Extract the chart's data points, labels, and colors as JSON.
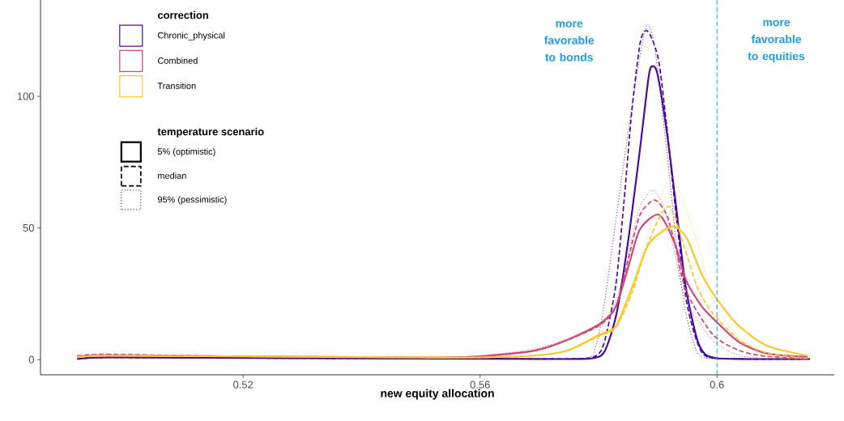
{
  "chart_data": {
    "type": "line",
    "xlabel": "new equity allocation",
    "legend_title": "correction",
    "legend": "top left",
    "xlim": [
      0.4858,
      0.6198
    ],
    "ylim": [
      -5.8,
      136.6
    ],
    "xticks": [
      0.52,
      0.56,
      0.6
    ],
    "yticks": [
      0,
      50,
      100
    ],
    "ref_lines": [
      {
        "axis": "x",
        "value": 0.6,
        "color": "#1f9be8",
        "line_style": "dashed"
      }
    ],
    "annotations": [
      "more favorable to bonds",
      "more favorable to equities",
      "temperature scenario",
      "5% (optimistic)",
      "median",
      "95% (pessimistic)"
    ],
    "series": [
      {
        "name": "Chronic_physical",
        "color": "#4a0c9f",
        "line_style": "solid",
        "x": [
          0.492,
          0.497,
          0.52,
          0.56,
          0.575,
          0.579,
          0.581,
          0.583,
          0.585,
          0.587,
          0.5885,
          0.5892,
          0.59,
          0.5915,
          0.593,
          0.5947,
          0.5966,
          0.598,
          0.6,
          0.605,
          0.6157
        ],
        "values": [
          0.2,
          0.8,
          0.6,
          0.3,
          0.2,
          0.5,
          3,
          17,
          45,
          80,
          108,
          111.5,
          108,
          87,
          60,
          28,
          8,
          2,
          0.5,
          0.2,
          0.2
        ]
      },
      {
        "color": "#4a0c9f",
        "line_style": "dashed",
        "x": [
          0.492,
          0.497,
          0.52,
          0.56,
          0.575,
          0.5792,
          0.5809,
          0.5829,
          0.5843,
          0.5856,
          0.587,
          0.588,
          0.589,
          0.5902,
          0.5915,
          0.5929,
          0.5948,
          0.5966,
          0.5984,
          0.605,
          0.6157
        ],
        "values": [
          0.2,
          0.8,
          0.6,
          0.3,
          0.3,
          1,
          6,
          28,
          60,
          94,
          120,
          125,
          122,
          113,
          89,
          59,
          23,
          7,
          1,
          0.2,
          0.2
        ]
      },
      {
        "color": "#4a0c9f",
        "line_style": "dotted",
        "x": [
          0.492,
          0.497,
          0.52,
          0.56,
          0.5774,
          0.5795,
          0.5811,
          0.5839,
          0.5866,
          0.5881,
          0.5892,
          0.5902,
          0.5921,
          0.5934,
          0.5948,
          0.5966,
          0.5984,
          0.605,
          0.6157
        ],
        "values": [
          0.2,
          0.8,
          0.6,
          0.3,
          0.5,
          5,
          23,
          69,
          110,
          127,
          122,
          106,
          67,
          38,
          17,
          3,
          0.5,
          0.2,
          0.2
        ]
      },
      {
        "name": "Combined",
        "color": "#cc4778",
        "line_style": "solid",
        "x": [
          0.492,
          0.497,
          0.52,
          0.55,
          0.56,
          0.5692,
          0.5747,
          0.5802,
          0.5829,
          0.585,
          0.587,
          0.5902,
          0.5929,
          0.5948,
          0.5975,
          0.6003,
          0.6038,
          0.6085,
          0.6153
        ],
        "values": [
          1,
          1.5,
          1.2,
          0.8,
          1.2,
          3.4,
          7.4,
          13.5,
          20,
          35,
          49.5,
          55,
          44,
          30,
          20,
          13.5,
          6.5,
          2.3,
          1
        ]
      },
      {
        "color": "#cc4778",
        "line_style": "dashed",
        "x": [
          0.492,
          0.497,
          0.52,
          0.55,
          0.56,
          0.5692,
          0.5747,
          0.5802,
          0.5829,
          0.585,
          0.587,
          0.5895,
          0.5915,
          0.5929,
          0.5948,
          0.5993,
          0.6038,
          0.6085,
          0.6153
        ],
        "values": [
          1.4,
          2,
          1.2,
          0.8,
          1.2,
          3.4,
          7.4,
          13,
          20,
          38,
          55,
          60.6,
          55,
          44,
          26,
          9.5,
          3.4,
          1.2,
          0.5
        ]
      },
      {
        "color": "#cc4778",
        "line_style": "dotted",
        "x": [
          0.492,
          0.497,
          0.52,
          0.55,
          0.56,
          0.5692,
          0.5747,
          0.5802,
          0.5829,
          0.585,
          0.587,
          0.5892,
          0.591,
          0.5929,
          0.5948,
          0.5993,
          0.6038,
          0.61,
          0.6153
        ],
        "values": [
          1.4,
          2,
          1.2,
          0.8,
          1.5,
          4,
          8,
          14,
          22,
          40,
          58,
          64.3,
          58,
          40,
          22,
          7.4,
          1.5,
          0.3,
          0.2
        ]
      },
      {
        "name": "Transition",
        "color": "#fcc72a",
        "line_style": "solid",
        "x": [
          0.492,
          0.497,
          0.52,
          0.55,
          0.56,
          0.5692,
          0.5747,
          0.5802,
          0.5829,
          0.5856,
          0.5885,
          0.5924,
          0.5948,
          0.5975,
          0.6003,
          0.6038,
          0.6085,
          0.6153
        ],
        "values": [
          1,
          1.5,
          1.2,
          0.8,
          0.8,
          1.5,
          3.4,
          9.5,
          12.6,
          27,
          44,
          50.5,
          46.5,
          32,
          22,
          12.6,
          5.2,
          1.5
        ]
      },
      {
        "color": "#fcc72a",
        "line_style": "dashed",
        "x": [
          0.492,
          0.497,
          0.52,
          0.55,
          0.56,
          0.5692,
          0.5747,
          0.5802,
          0.5829,
          0.5856,
          0.588,
          0.5905,
          0.592,
          0.5935,
          0.5966,
          0.5993,
          0.6038,
          0.6085,
          0.6153
        ],
        "values": [
          1,
          1.5,
          1.2,
          0.8,
          0.8,
          1.5,
          3.4,
          9,
          12,
          25,
          42,
          55,
          58,
          50,
          28,
          17.5,
          7.4,
          2.5,
          0.5
        ]
      },
      {
        "color": "#fcc72a",
        "line_style": "dotted",
        "x": [
          0.492,
          0.497,
          0.52,
          0.55,
          0.56,
          0.5692,
          0.5747,
          0.5802,
          0.5829,
          0.5856,
          0.588,
          0.5905,
          0.5925,
          0.594,
          0.5966,
          0.5993,
          0.6038,
          0.6085,
          0.615
        ],
        "values": [
          1,
          1.5,
          1.2,
          0.8,
          0.8,
          1.5,
          3.4,
          9,
          12,
          25,
          45,
          62,
          69,
          62,
          45,
          23,
          7,
          1.5,
          0.3
        ]
      }
    ]
  }
}
